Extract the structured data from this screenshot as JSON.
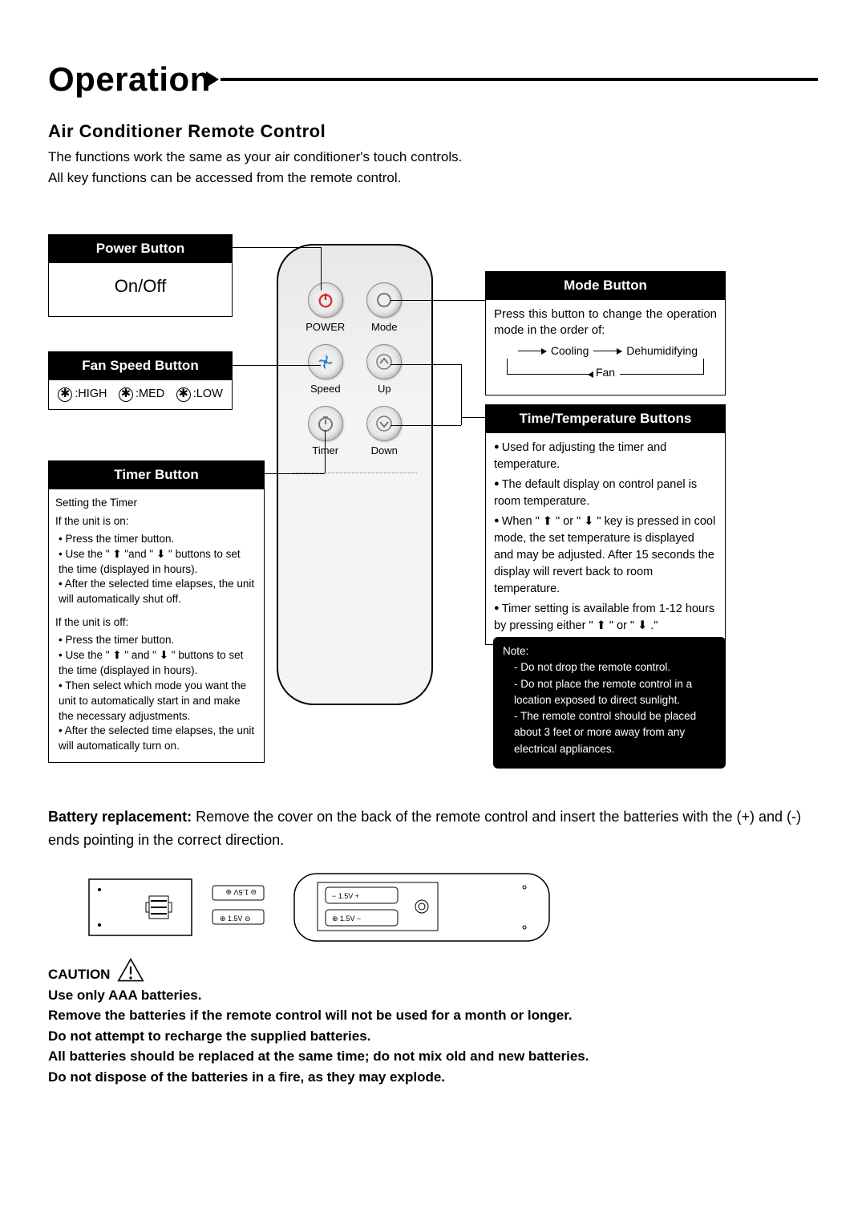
{
  "page": {
    "title": "Operation",
    "subheading": "Air  Conditioner  Remote  Control",
    "intro_lines": [
      "The functions work the same as your air conditioner's touch controls.",
      "All key functions can be accessed from the remote control."
    ]
  },
  "boxes": {
    "power": {
      "title": "Power Button",
      "body": "On/Off"
    },
    "fanspeed": {
      "title": "Fan Speed Button",
      "levels": [
        ":HIGH",
        ":MED",
        ":LOW"
      ]
    },
    "timer": {
      "title": "Timer Button",
      "section1_heading": "Setting the Timer",
      "on_heading": "If the unit is on:",
      "on_steps": [
        "Press the timer button.",
        "Use the \" ⬆ \"and \" ⬇ \" buttons to set the time (displayed in hours).",
        "After the selected time elapses, the unit will automatically shut off."
      ],
      "off_heading": "If the unit is off:",
      "off_steps": [
        "Press the timer button.",
        "Use the \" ⬆ \" and \" ⬇ \" buttons to set the time (displayed in hours).",
        "Then select which mode you want the unit to automatically start in and make the necessary adjustments.",
        "After the selected time elapses, the unit will automatically turn on."
      ]
    },
    "mode": {
      "title": "Mode Button",
      "lead": "Press this button to change the operation mode in the order of:",
      "seq_cooling": "Cooling",
      "seq_dehum": "Dehumidifying",
      "seq_fan": "Fan"
    },
    "timetemp": {
      "title": "Time/Temperature  Buttons",
      "items": [
        "Used for adjusting the timer and temperature.",
        "The default display on control panel is room temperature.",
        "When \" ⬆ \" or \" ⬇ \" key is pressed in cool mode, the set temperature is displayed and may be adjusted. After 15 seconds the display will revert back to room temperature.",
        "Timer setting is available from 1-12 hours by pressing either \" ⬆ \" or \" ⬇ .\""
      ]
    }
  },
  "note": {
    "heading": "Note:",
    "items": [
      "Do not drop the remote control.",
      "Do not place the remote control in a location exposed to direct sunlight.",
      "The remote control should be placed about 3 feet or more away from any electrical appliances."
    ]
  },
  "remote": {
    "buttons": [
      {
        "name": "power-button",
        "label": "POWER",
        "glyph": "power",
        "color": "#d32f2f"
      },
      {
        "name": "mode-button",
        "label": "Mode",
        "glyph": "circle",
        "color": "#777"
      },
      {
        "name": "speed-button",
        "label": "Speed",
        "glyph": "fan",
        "color": "#2b7fd4"
      },
      {
        "name": "up-button",
        "label": "Up",
        "glyph": "up",
        "color": "#777"
      },
      {
        "name": "timer-button",
        "label": "Timer",
        "glyph": "timer",
        "color": "#777"
      },
      {
        "name": "down-button",
        "label": "Down",
        "glyph": "down",
        "color": "#777"
      }
    ]
  },
  "battery": {
    "lead": "Battery replacement:",
    "text": "Remove the cover on the back of the remote control and insert the batteries with the (+) and (-) ends pointing in the correct direction.",
    "v_label_top": "1.5V",
    "v_label_bot": "1.5V"
  },
  "caution": {
    "heading": "CAUTION",
    "lines": [
      "Use only AAA batteries.",
      "Remove the batteries if the remote control will not be used for a month or longer.",
      "Do not attempt to recharge the supplied batteries.",
      "All batteries should be replaced at the same time; do not mix old and new batteries.",
      "Do not dispose of the batteries in a fire, as they may explode."
    ]
  },
  "colors": {
    "black": "#000000",
    "white": "#ffffff",
    "power_red": "#d32f2f",
    "fan_blue": "#2b7fd4",
    "remote_grey": "#e8e8ea"
  }
}
